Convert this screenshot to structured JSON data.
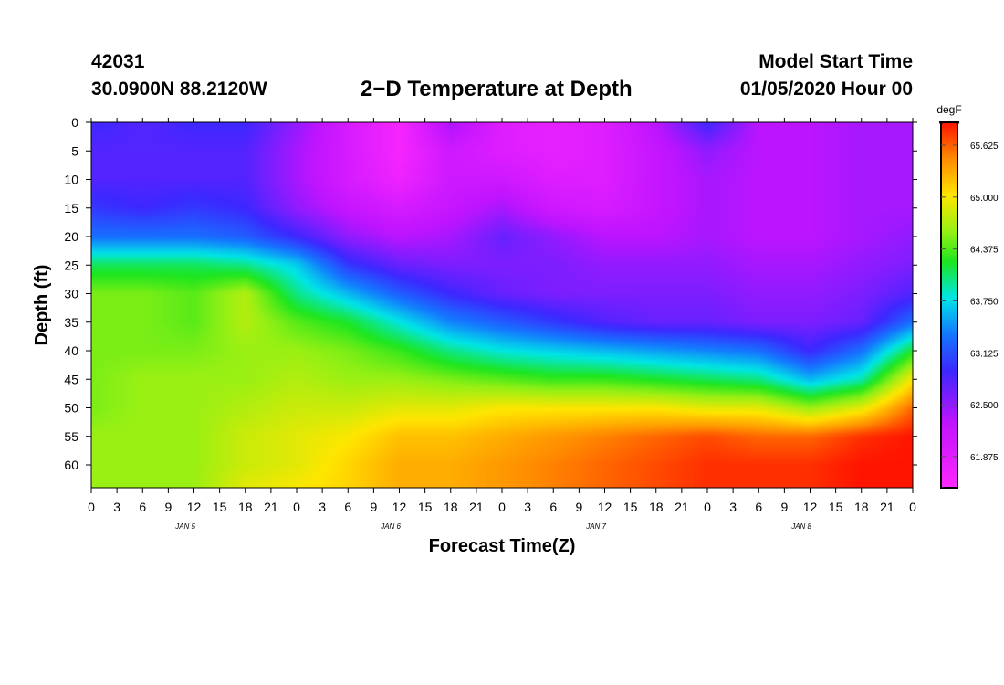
{
  "header": {
    "station": "42031",
    "coords": "30.0900N 88.2120W",
    "title": "2−D Temperature at Depth",
    "model_label": "Model Start Time",
    "model_value": "01/05/2020 Hour 00"
  },
  "chart_data": {
    "type": "heatmap",
    "title": "2−D Temperature at Depth",
    "xlabel": "Forecast Time(Z)",
    "ylabel": "Depth (ft)",
    "x_tick_labels": [
      "0",
      "3",
      "6",
      "9",
      "12",
      "15",
      "18",
      "21",
      "0",
      "3",
      "6",
      "9",
      "12",
      "15",
      "18",
      "21",
      "0",
      "3",
      "6",
      "9",
      "12",
      "15",
      "18",
      "21",
      "0",
      "3",
      "6",
      "9",
      "12",
      "15",
      "18",
      "21",
      "0"
    ],
    "day_labels": [
      "JAN 5",
      "JAN 6",
      "JAN 7",
      "JAN 8"
    ],
    "y_tick_labels": [
      "0",
      "5",
      "10",
      "15",
      "20",
      "25",
      "30",
      "35",
      "40",
      "45",
      "50",
      "55",
      "60"
    ],
    "xlim": [
      0,
      96
    ],
    "ylim": [
      0,
      64
    ],
    "colorbar": {
      "unit": "degF",
      "min": 61.5,
      "max": 65.9,
      "tick_labels": [
        "65.625",
        "65.000",
        "64.375",
        "63.750",
        "63.125",
        "62.500",
        "61.875"
      ],
      "tick_values": [
        65.625,
        65.0,
        64.375,
        63.75,
        63.125,
        62.5,
        61.875
      ]
    },
    "x_hours": [
      0,
      6,
      12,
      18,
      24,
      30,
      36,
      42,
      48,
      54,
      60,
      66,
      72,
      78,
      84,
      90,
      96
    ],
    "depths_ft": [
      0,
      5,
      10,
      15,
      20,
      25,
      30,
      35,
      40,
      45,
      50,
      55,
      60,
      64
    ],
    "values_degF": [
      [
        62.9,
        62.8,
        62.9,
        62.9,
        62.5,
        62.0,
        61.6,
        62.4,
        61.9,
        61.8,
        61.9,
        62.3,
        62.9,
        62.3,
        62.3,
        62.4,
        62.4
      ],
      [
        62.8,
        62.8,
        62.8,
        62.8,
        62.4,
        62.0,
        61.6,
        62.1,
        61.9,
        61.8,
        61.9,
        62.2,
        62.5,
        62.3,
        62.3,
        62.4,
        62.4
      ],
      [
        62.8,
        62.8,
        62.8,
        62.8,
        62.4,
        62.0,
        61.7,
        62.1,
        62.1,
        61.9,
        61.9,
        62.2,
        62.4,
        62.3,
        62.3,
        62.4,
        62.4
      ],
      [
        63.0,
        62.9,
        63.0,
        62.9,
        62.5,
        62.2,
        62.0,
        62.2,
        62.4,
        62.1,
        62.0,
        62.2,
        62.4,
        62.3,
        62.3,
        62.4,
        62.4
      ],
      [
        63.3,
        63.3,
        63.3,
        63.2,
        62.9,
        62.5,
        62.3,
        62.4,
        62.7,
        62.5,
        62.3,
        62.3,
        62.4,
        62.3,
        62.3,
        62.4,
        62.5
      ],
      [
        64.1,
        64.1,
        64.1,
        64.0,
        63.7,
        63.0,
        62.7,
        62.6,
        62.6,
        62.6,
        62.5,
        62.5,
        62.5,
        62.4,
        62.4,
        62.5,
        62.6
      ],
      [
        64.5,
        64.5,
        64.4,
        64.7,
        64.0,
        63.6,
        63.2,
        62.9,
        62.7,
        62.6,
        62.6,
        62.6,
        62.6,
        62.5,
        62.5,
        62.6,
        62.8
      ],
      [
        64.5,
        64.5,
        64.4,
        64.7,
        64.4,
        64.2,
        63.8,
        63.4,
        63.2,
        63.0,
        62.8,
        62.7,
        62.7,
        62.6,
        62.6,
        62.7,
        63.3
      ],
      [
        64.5,
        64.5,
        64.5,
        64.6,
        64.6,
        64.5,
        64.3,
        64.0,
        63.8,
        63.7,
        63.6,
        63.5,
        63.4,
        63.3,
        62.9,
        63.3,
        64.2
      ],
      [
        64.5,
        64.6,
        64.6,
        64.6,
        64.7,
        64.6,
        64.6,
        64.5,
        64.4,
        64.3,
        64.3,
        64.2,
        64.1,
        64.0,
        63.6,
        63.9,
        65.0
      ],
      [
        64.5,
        64.6,
        64.6,
        64.7,
        64.8,
        64.8,
        64.9,
        64.9,
        65.0,
        65.0,
        65.0,
        65.0,
        64.9,
        64.9,
        64.6,
        64.9,
        65.6
      ],
      [
        64.6,
        64.6,
        64.6,
        64.8,
        64.9,
        65.0,
        65.2,
        65.2,
        65.3,
        65.4,
        65.5,
        65.6,
        65.7,
        65.6,
        65.6,
        65.8,
        65.9
      ],
      [
        64.6,
        64.6,
        64.6,
        64.8,
        64.9,
        65.1,
        65.3,
        65.3,
        65.4,
        65.5,
        65.6,
        65.7,
        65.8,
        65.8,
        65.8,
        65.9,
        65.9
      ],
      [
        64.6,
        64.6,
        64.6,
        64.9,
        65.0,
        65.1,
        65.3,
        65.3,
        65.4,
        65.5,
        65.6,
        65.7,
        65.8,
        65.8,
        65.8,
        65.9,
        65.9
      ]
    ],
    "grid": false
  }
}
